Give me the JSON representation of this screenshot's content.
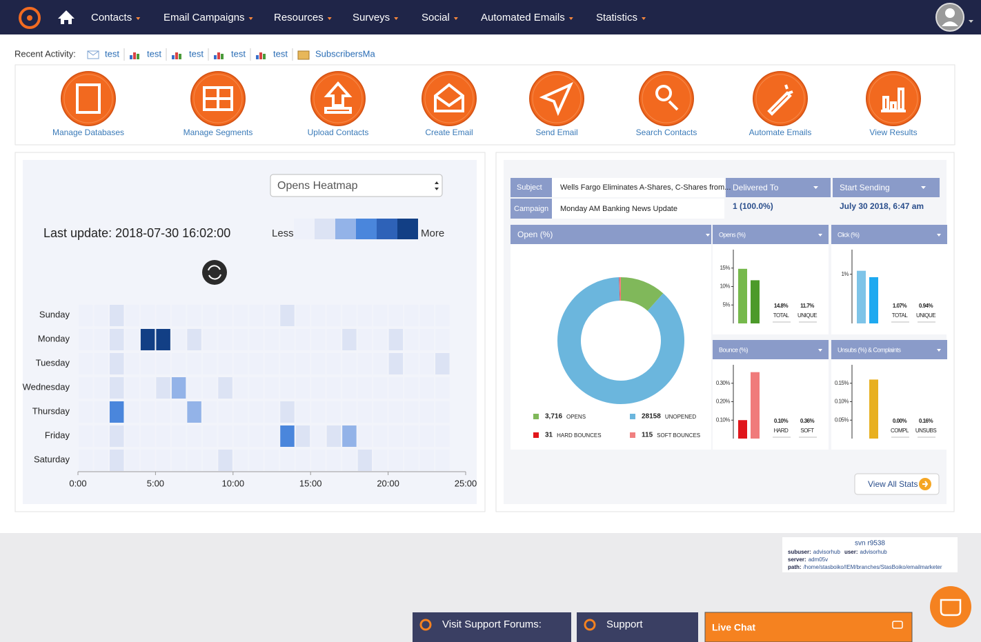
{
  "nav": {
    "items": [
      "Contacts",
      "Email Campaigns",
      "Resources",
      "Surveys",
      "Social",
      "Automated Emails",
      "Statistics"
    ]
  },
  "recent_activity": {
    "label": "Recent Activity:",
    "items": [
      "test",
      "test",
      "test",
      "test",
      "test",
      "SubscribersMa"
    ]
  },
  "tiles": [
    "Manage Databases",
    "Manage Segments",
    "Upload Contacts",
    "Create Email",
    "Send Email",
    "Search Contacts",
    "Automate Emails",
    "View Results"
  ],
  "heatmap_panel": {
    "select": "Opens Heatmap",
    "last_update": "Last update: 2018-07-30 16:02:00",
    "less": "Less",
    "more": "More"
  },
  "stats": {
    "subject_label": "Subject",
    "subject": "Wells Fargo Eliminates A-Shares, C-Shares from...",
    "campaign_label": "Campaign",
    "campaign": "Monday AM Banking News Update",
    "delivered_label": "Delivered To",
    "delivered": "1 (100.0%)",
    "start_label": "Start Sending",
    "start": "July 30 2018, 6:47 am",
    "open_header": "Open (%)",
    "view_all": "View All Stats"
  },
  "chart_data": [
    {
      "type": "heatmap",
      "rows": [
        "Sunday",
        "Monday",
        "Tuesday",
        "Wednesday",
        "Thursday",
        "Friday",
        "Saturday"
      ],
      "colors": [
        "#eef1fa",
        "#dce3f4",
        "#93b3e8",
        "#4a86dc",
        "#2e62b8",
        "#123f85"
      ],
      "xlim": [
        0,
        25
      ],
      "xticks": [
        {
          "value": 0,
          "label": "0:00"
        },
        {
          "value": 5,
          "label": "5:00"
        },
        {
          "value": 10,
          "label": "10:00"
        },
        {
          "value": 15,
          "label": "15:00"
        },
        {
          "value": 20,
          "label": "20:00"
        },
        {
          "value": 25,
          "label": "25:00"
        }
      ],
      "values": [
        [
          0,
          0,
          1,
          0,
          0,
          0,
          0,
          0,
          0,
          0,
          0,
          0,
          0,
          1,
          0,
          0,
          0,
          0,
          0,
          0,
          0,
          0,
          0,
          0
        ],
        [
          0,
          0,
          1,
          0,
          5,
          5,
          0,
          1,
          0,
          0,
          0,
          0,
          0,
          0,
          0,
          0,
          0,
          1,
          0,
          0,
          1,
          0,
          0,
          0
        ],
        [
          0,
          0,
          1,
          0,
          0,
          0,
          0,
          0,
          0,
          0,
          0,
          0,
          0,
          0,
          0,
          0,
          0,
          0,
          0,
          0,
          1,
          0,
          0,
          1
        ],
        [
          0,
          0,
          1,
          0,
          0,
          1,
          2,
          0,
          0,
          1,
          0,
          0,
          0,
          0,
          0,
          0,
          0,
          0,
          0,
          0,
          0,
          0,
          0,
          0
        ],
        [
          0,
          0,
          3,
          0,
          0,
          0,
          0,
          2,
          0,
          0,
          0,
          0,
          0,
          1,
          0,
          0,
          0,
          0,
          0,
          0,
          0,
          0,
          0,
          0
        ],
        [
          0,
          0,
          1,
          0,
          0,
          0,
          0,
          0,
          0,
          0,
          0,
          0,
          0,
          3,
          1,
          0,
          1,
          2,
          0,
          0,
          0,
          0,
          0,
          0
        ],
        [
          0,
          0,
          1,
          0,
          0,
          0,
          0,
          0,
          0,
          1,
          0,
          0,
          0,
          0,
          0,
          0,
          0,
          0,
          1,
          0,
          0,
          0,
          0,
          0
        ]
      ]
    },
    {
      "type": "donut",
      "categories": [
        "OPENS",
        "UNOPENED",
        "HARD BOUNCES",
        "SOFT BOUNCES"
      ],
      "values": [
        3716,
        28158,
        31,
        115
      ],
      "value_labels": [
        "3,716",
        "28158",
        "31",
        "115"
      ],
      "colors": [
        "#80b85a",
        "#6bb6dd",
        "#e2161b",
        "#f08080"
      ]
    },
    {
      "type": "bar",
      "title": "Opens (%)",
      "categories": [
        "TOTAL",
        "UNIQUE"
      ],
      "values": [
        14.8,
        11.7
      ],
      "value_labels": [
        "14.8%",
        "11.7%"
      ],
      "colors": [
        "#76b94c",
        "#4c9a2a"
      ],
      "ylim": [
        0,
        20
      ],
      "yticks": [
        {
          "value": 5,
          "label": "5%"
        },
        {
          "value": 10,
          "label": "10%"
        },
        {
          "value": 15,
          "label": "15%"
        }
      ]
    },
    {
      "type": "bar",
      "title": "Click (%)",
      "categories": [
        "TOTAL",
        "UNIQUE"
      ],
      "values": [
        1.07,
        0.94
      ],
      "value_labels": [
        "1.07%",
        "0.94%"
      ],
      "colors": [
        "#7ec4e8",
        "#1ea9f0"
      ],
      "ylim": [
        0,
        1.5
      ],
      "yticks": [
        {
          "value": 1,
          "label": "1%"
        }
      ]
    },
    {
      "type": "bar",
      "title": "Bounce (%)",
      "categories": [
        "HARD",
        "SOFT"
      ],
      "values": [
        0.1,
        0.36
      ],
      "value_labels": [
        "0.10%",
        "0.36%"
      ],
      "colors": [
        "#e0161b",
        "#f07b7b"
      ],
      "ylim": [
        0,
        0.4
      ],
      "yticks": [
        {
          "value": 0.1,
          "label": "0.10%"
        },
        {
          "value": 0.2,
          "label": "0.20%"
        },
        {
          "value": 0.3,
          "label": "0.30%"
        }
      ]
    },
    {
      "type": "bar",
      "title": "Unsubs (%) & Complaints",
      "categories": [
        "COMPL",
        "UNSUBS"
      ],
      "values": [
        0,
        0.16
      ],
      "value_labels": [
        "0.00%",
        "0.16%"
      ],
      "colors": [
        "#e8b020",
        "#e8b020"
      ],
      "ylim": [
        0,
        0.2
      ],
      "yticks": [
        {
          "value": 0.05,
          "label": "0.05%"
        },
        {
          "value": 0.1,
          "label": "0.10%"
        },
        {
          "value": 0.15,
          "label": "0.15%"
        }
      ]
    }
  ],
  "footer": {
    "svn": "svn r9538",
    "lines": [
      [
        {
          "label": "subuser:",
          "value": "advisorhub"
        },
        {
          "label": "user:",
          "value": "advisorhub"
        }
      ],
      [
        {
          "label": "server:",
          "value": "adm05v"
        }
      ],
      [
        {
          "label": "path:",
          "value": "/home/stasboiko/IEM/branches/StasBoiko/emailmarketer"
        }
      ]
    ],
    "forums": "Visit Support Forums:",
    "support": "Support",
    "live_chat": "Live Chat"
  }
}
